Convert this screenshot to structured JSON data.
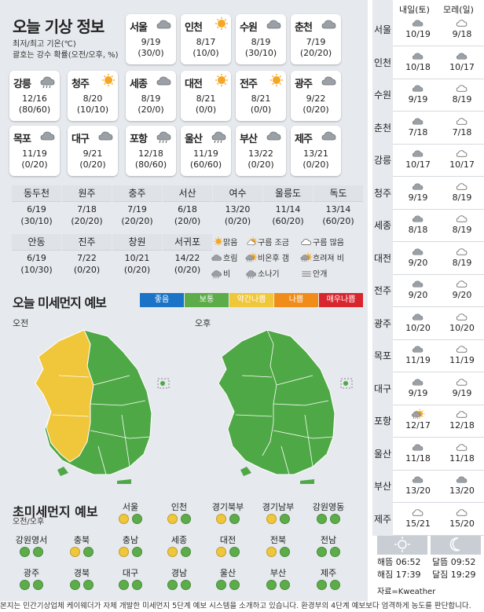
{
  "title": "오늘 기상 정보",
  "notes": [
    "최저/최고 기온(℃)",
    "괄호는 강수 확률(오전/오후, %)"
  ],
  "cities": [
    {
      "name": "서울",
      "icon": "cloud",
      "temp": "9/19",
      "rain": "(30/0)"
    },
    {
      "name": "인천",
      "icon": "sun",
      "temp": "8/17",
      "rain": "(10/0)"
    },
    {
      "name": "수원",
      "icon": "cloud",
      "temp": "8/19",
      "rain": "(30/10)"
    },
    {
      "name": "춘천",
      "icon": "cloud",
      "temp": "7/19",
      "rain": "(20/20)"
    },
    {
      "name": "강릉",
      "icon": "rain",
      "temp": "12/16",
      "rain": "(80/60)"
    },
    {
      "name": "청주",
      "icon": "sun",
      "temp": "8/20",
      "rain": "(10/10)"
    },
    {
      "name": "세종",
      "icon": "cloud",
      "temp": "8/19",
      "rain": "(20/0)"
    },
    {
      "name": "대전",
      "icon": "sun",
      "temp": "8/21",
      "rain": "(0/0)"
    },
    {
      "name": "전주",
      "icon": "sun",
      "temp": "8/21",
      "rain": "(0/0)"
    },
    {
      "name": "광주",
      "icon": "cloud",
      "temp": "9/22",
      "rain": "(0/20)"
    },
    {
      "name": "목포",
      "icon": "cloud",
      "temp": "11/19",
      "rain": "(0/20)"
    },
    {
      "name": "대구",
      "icon": "cloud",
      "temp": "9/21",
      "rain": "(0/20)"
    },
    {
      "name": "포항",
      "icon": "rain",
      "temp": "12/18",
      "rain": "(80/60)"
    },
    {
      "name": "울산",
      "icon": "rain",
      "temp": "11/19",
      "rain": "(60/60)"
    },
    {
      "name": "부산",
      "icon": "cloud",
      "temp": "13/22",
      "rain": "(0/20)"
    },
    {
      "name": "제주",
      "icon": "cloud",
      "temp": "13/21",
      "rain": "(0/20)"
    }
  ],
  "cities2": [
    {
      "name": "동두천",
      "temp": "6/19",
      "rain": "(30/10)"
    },
    {
      "name": "원주",
      "temp": "7/18",
      "rain": "(20/20)"
    },
    {
      "name": "충주",
      "temp": "7/19",
      "rain": "(20/20)"
    },
    {
      "name": "서산",
      "temp": "6/18",
      "rain": "(20/0)"
    },
    {
      "name": "여수",
      "temp": "13/20",
      "rain": "(0/20)"
    },
    {
      "name": "울릉도",
      "temp": "11/14",
      "rain": "(60/20)"
    },
    {
      "name": "독도",
      "temp": "13/14",
      "rain": "(60/20)"
    },
    {
      "name": "안동",
      "temp": "6/19",
      "rain": "(10/30)"
    },
    {
      "name": "진주",
      "temp": "7/22",
      "rain": "(0/20)"
    },
    {
      "name": "창원",
      "temp": "10/21",
      "rain": "(0/20)"
    },
    {
      "name": "서귀포",
      "temp": "14/22",
      "rain": "(0/20)"
    }
  ],
  "icon_legend": [
    {
      "label": "맑음",
      "icon": "sun"
    },
    {
      "label": "구름 조금",
      "icon": "suncloud"
    },
    {
      "label": "구름 많음",
      "icon": "cloud-light"
    },
    {
      "label": "흐림",
      "icon": "cloud"
    },
    {
      "label": "비온후 갬",
      "icon": "rain-sun"
    },
    {
      "label": "흐려져 비",
      "icon": "sun-rain"
    },
    {
      "label": "비",
      "icon": "rain"
    },
    {
      "label": "소나기",
      "icon": "shower"
    },
    {
      "label": "안개",
      "icon": "fog"
    }
  ],
  "dust": {
    "title": "오늘 미세먼지 예보",
    "levels": [
      {
        "label": "좋음",
        "color": "#1a73c7"
      },
      {
        "label": "보통",
        "color": "#5cad4a"
      },
      {
        "label": "약간나쁨",
        "color": "#f0c63a"
      },
      {
        "label": "나쁨",
        "color": "#f08c1a"
      },
      {
        "label": "매우나쁨",
        "color": "#d8262f"
      }
    ],
    "am": "오전",
    "pm": "오후"
  },
  "fine": {
    "title": "초미세먼지 예보",
    "sub": "오전/오후",
    "regions": [
      {
        "name": "서울",
        "am": "yellow",
        "pm": "green"
      },
      {
        "name": "인천",
        "am": "yellow",
        "pm": "green"
      },
      {
        "name": "경기북부",
        "am": "yellow",
        "pm": "green"
      },
      {
        "name": "경기남부",
        "am": "yellow",
        "pm": "green"
      },
      {
        "name": "강원영동",
        "am": "green",
        "pm": "green"
      },
      {
        "name": "강원영서",
        "am": "green",
        "pm": "green"
      },
      {
        "name": "충북",
        "am": "yellow",
        "pm": "green"
      },
      {
        "name": "충남",
        "am": "yellow",
        "pm": "green"
      },
      {
        "name": "세종",
        "am": "yellow",
        "pm": "green"
      },
      {
        "name": "대전",
        "am": "yellow",
        "pm": "green"
      },
      {
        "name": "전북",
        "am": "yellow",
        "pm": "green"
      },
      {
        "name": "전남",
        "am": "green",
        "pm": "green"
      },
      {
        "name": "광주",
        "am": "green",
        "pm": "green"
      },
      {
        "name": "경북",
        "am": "green",
        "pm": "green"
      },
      {
        "name": "대구",
        "am": "green",
        "pm": "green"
      },
      {
        "name": "경남",
        "am": "green",
        "pm": "green"
      },
      {
        "name": "울산",
        "am": "green",
        "pm": "green"
      },
      {
        "name": "부산",
        "am": "green",
        "pm": "green"
      },
      {
        "name": "제주",
        "am": "green",
        "pm": "green"
      }
    ]
  },
  "forecast": {
    "col1": "내일(토)",
    "col2": "모레(일)",
    "rows": [
      {
        "city": "서울",
        "d1": "10/19",
        "d2": "9/18",
        "i1": "cloud",
        "i2": "cloud-light"
      },
      {
        "city": "인천",
        "d1": "10/18",
        "d2": "10/17",
        "i1": "cloud",
        "i2": "cloud"
      },
      {
        "city": "수원",
        "d1": "9/19",
        "d2": "8/19",
        "i1": "cloud",
        "i2": "cloud-light"
      },
      {
        "city": "춘천",
        "d1": "7/18",
        "d2": "7/18",
        "i1": "cloud",
        "i2": "cloud-light"
      },
      {
        "city": "강릉",
        "d1": "10/17",
        "d2": "10/17",
        "i1": "cloud",
        "i2": "cloud-light"
      },
      {
        "city": "청주",
        "d1": "9/19",
        "d2": "8/19",
        "i1": "cloud",
        "i2": "cloud-light"
      },
      {
        "city": "세종",
        "d1": "8/18",
        "d2": "8/19",
        "i1": "cloud",
        "i2": "cloud-light"
      },
      {
        "city": "대전",
        "d1": "9/20",
        "d2": "8/19",
        "i1": "cloud",
        "i2": "cloud-light"
      },
      {
        "city": "전주",
        "d1": "9/20",
        "d2": "9/20",
        "i1": "cloud",
        "i2": "cloud-light"
      },
      {
        "city": "광주",
        "d1": "10/20",
        "d2": "10/20",
        "i1": "cloud",
        "i2": "cloud-light"
      },
      {
        "city": "목포",
        "d1": "11/19",
        "d2": "11/19",
        "i1": "cloud",
        "i2": "cloud-light"
      },
      {
        "city": "대구",
        "d1": "9/19",
        "d2": "9/19",
        "i1": "cloud",
        "i2": "cloud-light"
      },
      {
        "city": "포항",
        "d1": "12/17",
        "d2": "12/18",
        "i1": "sun-rain",
        "i2": "cloud-light"
      },
      {
        "city": "울산",
        "d1": "11/18",
        "d2": "11/18",
        "i1": "cloud",
        "i2": "cloud-light"
      },
      {
        "city": "부산",
        "d1": "13/20",
        "d2": "13/20",
        "i1": "cloud",
        "i2": "cloud"
      },
      {
        "city": "제주",
        "d1": "15/21",
        "d2": "15/20",
        "i1": "cloud-light",
        "i2": "cloud-light"
      }
    ]
  },
  "sun": {
    "rise_label": "해뜸",
    "rise": "06:52",
    "set_label": "해짐",
    "set": "17:39",
    "moonrise_label": "달뜸",
    "moonrise": "09:52",
    "moonset_label": "달짐",
    "moonset": "19:29"
  },
  "source": "자료=Kweather",
  "footer": "본지는 민간기상업체 케이웨더가 자체 개발한 미세먼지 5단계 예보 시스템을 소개하고 있습니다. 환경부의 4단계 예보보다 엄격하게 농도를 판단합니다."
}
